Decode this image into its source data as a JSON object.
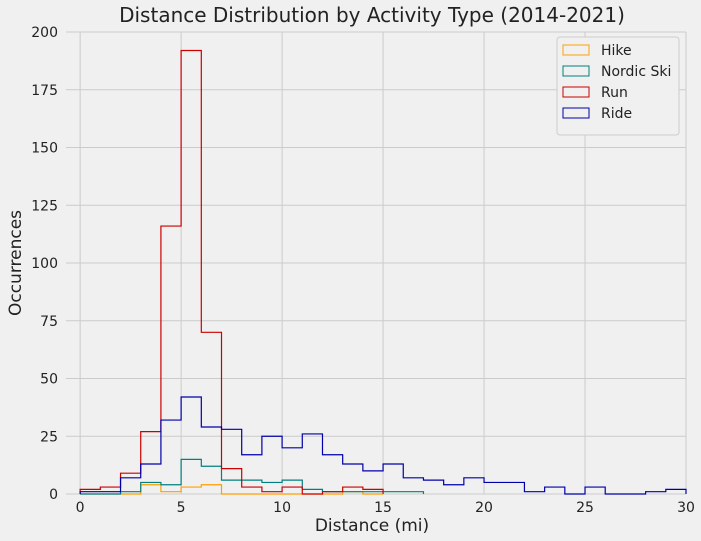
{
  "chart_data": {
    "type": "histogram",
    "title": "Distance Distribution by Activity Type (2014-2021)",
    "xlabel": "Distance (mi)",
    "ylabel": "Occurrences",
    "xlim": [
      -0.7,
      30
    ],
    "ylim": [
      0,
      200
    ],
    "xticks": [
      0,
      5,
      10,
      15,
      20,
      25,
      30
    ],
    "yticks": [
      0,
      25,
      50,
      75,
      100,
      125,
      150,
      175,
      200
    ],
    "bin_width": 1,
    "grid": true,
    "legend_position": "top-right",
    "series": [
      {
        "name": "Hike",
        "color": "#ff9e00",
        "bins": [
          0,
          1,
          2,
          3,
          4,
          5,
          6,
          7,
          8,
          9,
          10,
          11,
          12,
          13,
          14
        ],
        "values": [
          0,
          0,
          0,
          4,
          1,
          3,
          4,
          0,
          0,
          0,
          0,
          0,
          0,
          1,
          0
        ]
      },
      {
        "name": "Nordic Ski",
        "color": "#008080",
        "bins": [
          0,
          1,
          2,
          3,
          4,
          5,
          6,
          7,
          8,
          9,
          10,
          11,
          12,
          13,
          14,
          15,
          16
        ],
        "values": [
          0,
          0,
          1,
          5,
          4,
          15,
          12,
          6,
          6,
          5,
          6,
          2,
          1,
          1,
          1,
          1,
          1
        ]
      },
      {
        "name": "Run",
        "color": "#cc0000",
        "bins": [
          0,
          1,
          2,
          3,
          4,
          5,
          6,
          7,
          8,
          9,
          10,
          11,
          12,
          13,
          14
        ],
        "values": [
          2,
          3,
          9,
          27,
          116,
          192,
          70,
          11,
          3,
          1,
          3,
          0,
          1,
          3,
          2
        ]
      },
      {
        "name": "Ride",
        "color": "#0000aa",
        "bins": [
          0,
          1,
          2,
          3,
          4,
          5,
          6,
          7,
          8,
          9,
          10,
          11,
          12,
          13,
          14,
          15,
          16,
          17,
          18,
          19,
          20,
          21,
          22,
          23,
          24,
          25,
          26,
          27,
          28,
          29
        ],
        "values": [
          1,
          1,
          7,
          13,
          32,
          42,
          29,
          28,
          17,
          25,
          20,
          26,
          17,
          13,
          10,
          13,
          7,
          6,
          4,
          7,
          5,
          5,
          1,
          3,
          0,
          3,
          0,
          0,
          1,
          2
        ]
      }
    ]
  }
}
